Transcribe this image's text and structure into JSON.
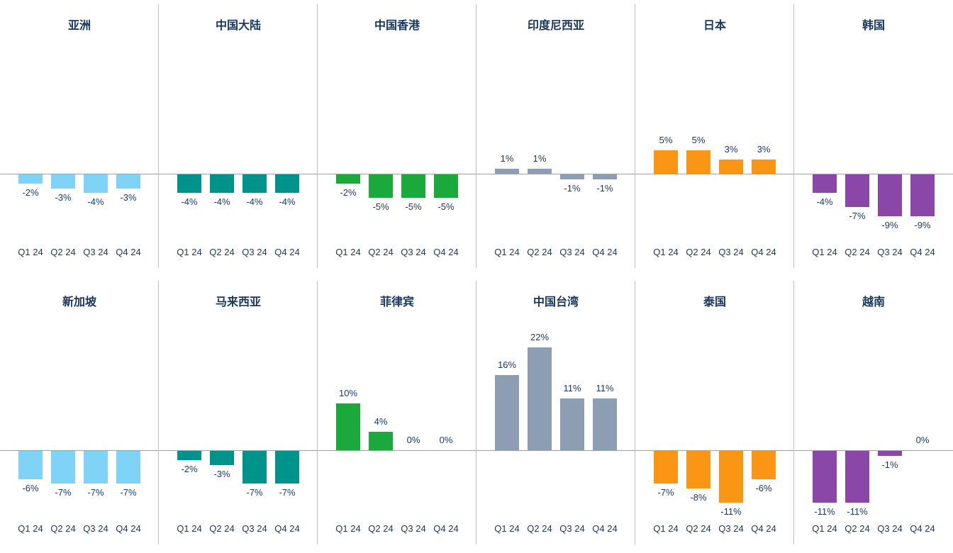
{
  "text_color": "#17375e",
  "axis_line_color": "#9aa2ac",
  "divider_color": "#b9bec6",
  "chart_data": [
    {
      "type": "bar",
      "title": "亚洲",
      "categories": [
        "Q1 24",
        "Q2 24",
        "Q3 24",
        "Q4 24"
      ],
      "values": [
        -2,
        -3,
        -4,
        -3
      ],
      "labels": [
        "-2%",
        "-3%",
        "-4%",
        "-3%"
      ],
      "color": "#7ed3f7"
    },
    {
      "type": "bar",
      "title": "中国大陆",
      "categories": [
        "Q1 24",
        "Q2 24",
        "Q3 24",
        "Q4 24"
      ],
      "values": [
        -4,
        -4,
        -4,
        -4
      ],
      "labels": [
        "-4%",
        "-4%",
        "-4%",
        "-4%"
      ],
      "color": "#00938c"
    },
    {
      "type": "bar",
      "title": "中国香港",
      "categories": [
        "Q1 24",
        "Q2 24",
        "Q3 24",
        "Q4 24"
      ],
      "values": [
        -2,
        -5,
        -5,
        -5
      ],
      "labels": [
        "-2%",
        "-5%",
        "-5%",
        "-5%"
      ],
      "color": "#1ca93c"
    },
    {
      "type": "bar",
      "title": "印度尼西亚",
      "categories": [
        "Q1 24",
        "Q2 24",
        "Q3 24",
        "Q4 24"
      ],
      "values": [
        1,
        1,
        -1,
        -1
      ],
      "labels": [
        "1%",
        "1%",
        "-1%",
        "-1%"
      ],
      "color": "#8e9eb2"
    },
    {
      "type": "bar",
      "title": "日本",
      "categories": [
        "Q1 24",
        "Q2 24",
        "Q3 24",
        "Q4 24"
      ],
      "values": [
        5,
        5,
        3,
        3
      ],
      "labels": [
        "5%",
        "5%",
        "3%",
        "3%"
      ],
      "color": "#fb9615"
    },
    {
      "type": "bar",
      "title": "韩国",
      "categories": [
        "Q1 24",
        "Q2 24",
        "Q3 24",
        "Q4 24"
      ],
      "values": [
        -4,
        -7,
        -9,
        -9
      ],
      "labels": [
        "-4%",
        "-7%",
        "-9%",
        "-9%"
      ],
      "color": "#8a47a8"
    },
    {
      "type": "bar",
      "title": "新加坡",
      "categories": [
        "Q1 24",
        "Q2 24",
        "Q3 24",
        "Q4 24"
      ],
      "values": [
        -6,
        -7,
        -7,
        -7
      ],
      "labels": [
        "-6%",
        "-7%",
        "-7%",
        "-7%"
      ],
      "color": "#7ed3f7"
    },
    {
      "type": "bar",
      "title": "马来西亚",
      "categories": [
        "Q1 24",
        "Q2 24",
        "Q3 24",
        "Q4 24"
      ],
      "values": [
        -2,
        -3,
        -7,
        -7
      ],
      "labels": [
        "-2%",
        "-3%",
        "-7%",
        "-7%"
      ],
      "color": "#00938c"
    },
    {
      "type": "bar",
      "title": "菲律宾",
      "categories": [
        "Q1 24",
        "Q2 24",
        "Q3 24",
        "Q4 24"
      ],
      "values": [
        10,
        4,
        0,
        0
      ],
      "labels": [
        "10%",
        "4%",
        "0%",
        "0%"
      ],
      "color": "#1ca93c"
    },
    {
      "type": "bar",
      "title": "中国台湾",
      "categories": [
        "Q1 24",
        "Q2 24",
        "Q3 24",
        "Q4 24"
      ],
      "values": [
        16,
        22,
        11,
        11
      ],
      "labels": [
        "16%",
        "22%",
        "11%",
        "11%"
      ],
      "color": "#8e9eb2"
    },
    {
      "type": "bar",
      "title": "泰国",
      "categories": [
        "Q1 24",
        "Q2 24",
        "Q3 24",
        "Q4 24"
      ],
      "values": [
        -7,
        -8,
        -11,
        -6
      ],
      "labels": [
        "-7%",
        "-8%",
        "-11%",
        "-6%"
      ],
      "color": "#fb9615"
    },
    {
      "type": "bar",
      "title": "越南",
      "categories": [
        "Q1 24",
        "Q2 24",
        "Q3 24",
        "Q4 24"
      ],
      "values": [
        -11,
        -11,
        -1,
        0
      ],
      "labels": [
        "-11%",
        "-11%",
        "-1%",
        "0%"
      ],
      "color": "#8a47a8"
    }
  ]
}
